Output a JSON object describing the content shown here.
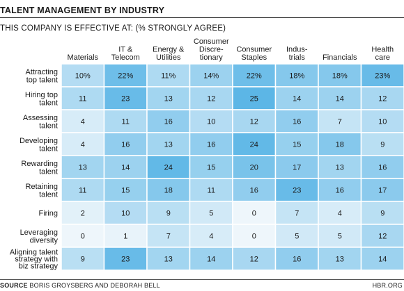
{
  "chart_data": {
    "type": "heatmap",
    "title": "TALENT MANAGEMENT BY INDUSTRY",
    "subtitle": "THIS COMPANY IS EFFECTIVE AT: (% STRONGLY AGREE)",
    "columns": [
      "Materials",
      "IT & Telecom",
      "Energy & Utilities",
      "Consumer Discretionary",
      "Consumer Staples",
      "Industrials",
      "Financials",
      "Health care"
    ],
    "column_label_lines": [
      [
        "Materials"
      ],
      [
        "IT &",
        "Telecom"
      ],
      [
        "Energy &",
        "Utilities"
      ],
      [
        "Consumer",
        "Discre-",
        "tionary"
      ],
      [
        "Consumer",
        "Staples"
      ],
      [
        "Indus-",
        "trials"
      ],
      [
        "Financials"
      ],
      [
        "Health",
        "care"
      ]
    ],
    "rows": [
      "Attracting top talent",
      "Hiring top talent",
      "Assessing talent",
      "Developing talent",
      "Rewarding talent",
      "Retaining talent",
      "Firing",
      "Leveraging diversity",
      "Aligning talent strategy with biz strategy"
    ],
    "row_label_lines": [
      [
        "Attracting",
        "top talent"
      ],
      [
        "Hiring top",
        "talent"
      ],
      [
        "Assessing",
        "talent"
      ],
      [
        "Developing",
        "talent"
      ],
      [
        "Rewarding",
        "talent"
      ],
      [
        "Retaining",
        "talent"
      ],
      [
        "Firing"
      ],
      [
        "Leveraging",
        "diversity"
      ],
      [
        "Aligning talent",
        "strategy with",
        "biz strategy"
      ]
    ],
    "values": [
      [
        10,
        22,
        11,
        14,
        22,
        18,
        18,
        23
      ],
      [
        11,
        23,
        13,
        12,
        25,
        14,
        14,
        12
      ],
      [
        4,
        11,
        16,
        10,
        12,
        16,
        7,
        10
      ],
      [
        4,
        16,
        13,
        16,
        24,
        15,
        18,
        9
      ],
      [
        13,
        14,
        24,
        15,
        20,
        17,
        13,
        16
      ],
      [
        11,
        15,
        18,
        11,
        16,
        23,
        16,
        17
      ],
      [
        2,
        10,
        9,
        5,
        0,
        7,
        4,
        9
      ],
      [
        0,
        1,
        7,
        4,
        0,
        5,
        5,
        12
      ],
      [
        9,
        23,
        13,
        14,
        12,
        16,
        13,
        14
      ]
    ],
    "first_row_suffix": "%",
    "color_low": "#eef6fb",
    "color_high": "#5cb6e6"
  },
  "footer": {
    "source_label": "SOURCE",
    "source_text": " BORIS GROYSBERG AND DEBORAH BELL",
    "brand": "HBR.ORG"
  }
}
